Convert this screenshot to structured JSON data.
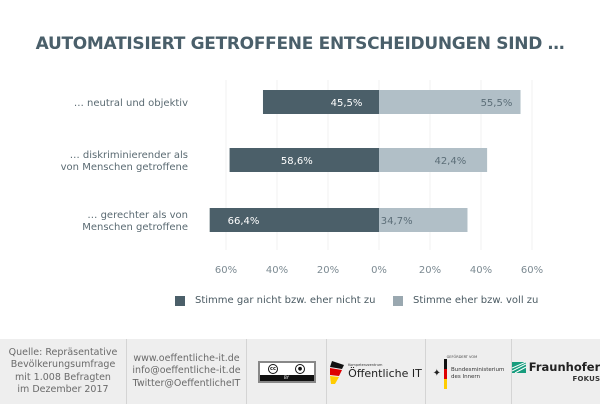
{
  "chart_data": {
    "type": "bar",
    "orientation": "horizontal-diverging",
    "title": "AUTOMATISIERT GETROFFENE ENTSCHEIDUNGEN SIND …",
    "categories": [
      "… neutral und objektiv",
      "… diskriminierender als von Menschen getroffene",
      "… gerechter als von Menschen getroffene"
    ],
    "category_lines": [
      [
        "… neutral und objektiv"
      ],
      [
        "… diskriminierender als",
        "von Menschen getroffene"
      ],
      [
        "… gerechter als von",
        "Menschen getroffene"
      ]
    ],
    "series": [
      {
        "name": "Stimme gar nicht bzw. eher nicht zu",
        "values": [
          45.5,
          58.6,
          66.4
        ],
        "labels": [
          "45,5%",
          "58,6%",
          "66,4%"
        ],
        "color": "#4b5f69",
        "direction": "left"
      },
      {
        "name": "Stimme eher bzw. voll zu",
        "values": [
          55.5,
          42.4,
          34.7
        ],
        "labels": [
          "55,5%",
          "42,4%",
          "34,7%"
        ],
        "color": "#b1bfc7",
        "direction": "right"
      }
    ],
    "xticks": [
      -60,
      -40,
      -20,
      0,
      20,
      40,
      60
    ],
    "xtick_labels": [
      "60%",
      "40%",
      "20%",
      "0%",
      "20%",
      "40%",
      "60%"
    ],
    "xlim": [
      -60,
      60
    ],
    "grid": true,
    "legend_position": "bottom"
  },
  "legend": {
    "items": [
      {
        "label": "Stimme gar nicht bzw. eher nicht zu",
        "color": "#4b5f69"
      },
      {
        "label": "Stimme eher bzw. voll zu",
        "color": "#9aa8b0"
      }
    ]
  },
  "footer": {
    "source_lines": [
      "Quelle: Repräsentative",
      "Bevölkerungsumfrage",
      "mit 1.008 Befragten",
      "im Dezember 2017"
    ],
    "contact_lines": [
      "www.oeffentliche-it.de",
      "info@oeffentliche-it.de",
      "Twitter@OeffentlicheIT"
    ],
    "license": {
      "cc": "cc",
      "by": "BY"
    },
    "oeffentliche_it": {
      "small": "Kompetenzzentrum",
      "big": "Öffentliche IT"
    },
    "bmi": {
      "small": "GEFÖRDERT VOM",
      "lines": [
        "Bundesministerium",
        "des Innern"
      ]
    },
    "fraunhofer": {
      "name": "Fraunhofer",
      "sub": "FOKUS"
    }
  }
}
